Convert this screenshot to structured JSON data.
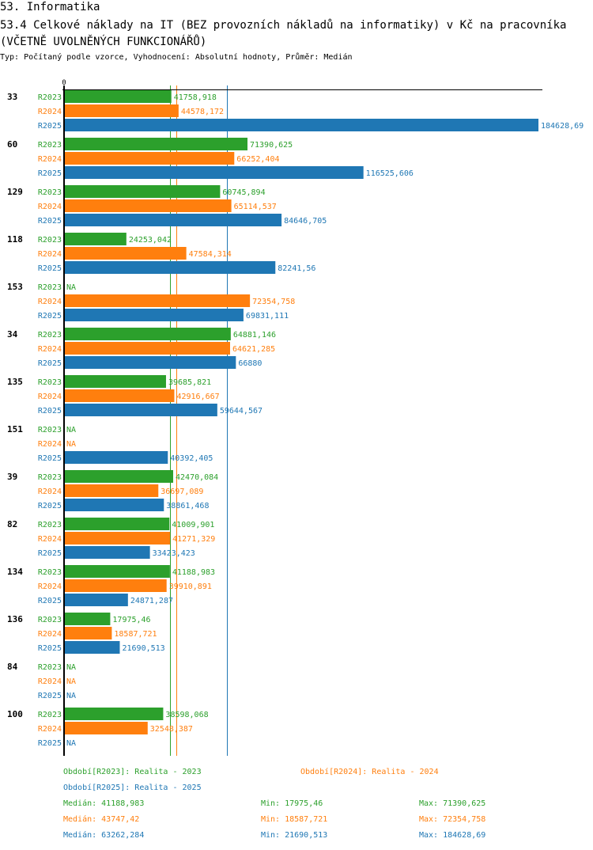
{
  "header": {
    "section": "53. Informatika",
    "title": "53.4 Celkové náklady na IT (BEZ provozních nákladů na informatiky) v Kč na pracovníka (VČETNĚ UVOLNĚNÝCH FUNKCIONÁŘŮ)",
    "subtitle": "Typ: Počítaný podle vzorce, Vyhodnocení: Absolutní hodnoty, Průměr: Medián"
  },
  "colors": {
    "R2023": "#2ca02c",
    "R2024": "#ff7f0e",
    "R2025": "#1f77b4"
  },
  "chart_data": {
    "type": "bar",
    "orientation": "horizontal",
    "title": "53.4 Celkové náklady na IT (BEZ provozních nákladů na informatiky) v Kč na pracovníka (VČETNĚ UVOLNĚNÝCH FUNKCIONÁŘŮ)",
    "axis_zero_label": "0",
    "xlim": [
      0,
      184628.69
    ],
    "categories": [
      "33",
      "60",
      "129",
      "118",
      "153",
      "34",
      "135",
      "151",
      "39",
      "82",
      "134",
      "136",
      "84",
      "100"
    ],
    "series": [
      {
        "name": "R2023",
        "color": "#2ca02c",
        "values": [
          41758.918,
          71390.625,
          60745.894,
          24253.042,
          null,
          64881.146,
          39685.821,
          null,
          42470.084,
          41009.901,
          41188.983,
          17975.46,
          null,
          38598.068
        ],
        "labels": [
          "41758,918",
          "71390,625",
          "60745,894",
          "24253,042",
          "NA",
          "64881,146",
          "39685,821",
          "NA",
          "42470,084",
          "41009,901",
          "41188,983",
          "17975,46",
          "NA",
          "38598,068"
        ]
      },
      {
        "name": "R2024",
        "color": "#ff7f0e",
        "values": [
          44578.172,
          66252.404,
          65114.537,
          47584.314,
          72354.758,
          64621.285,
          42916.667,
          null,
          36697.089,
          41271.329,
          39910.891,
          18587.721,
          null,
          32548.387
        ],
        "labels": [
          "44578,172",
          "66252,404",
          "65114,537",
          "47584,314",
          "72354,758",
          "64621,285",
          "42916,667",
          "NA",
          "36697,089",
          "41271,329",
          "39910,891",
          "18587,721",
          "NA",
          "32548,387"
        ]
      },
      {
        "name": "R2025",
        "color": "#1f77b4",
        "values": [
          184628.69,
          116525.606,
          84646.705,
          82241.56,
          69831.111,
          66880,
          59644.567,
          40392.405,
          38861.468,
          33423.423,
          24871.287,
          21690.513,
          null,
          null
        ],
        "labels": [
          "184628,69",
          "116525,606",
          "84646,705",
          "82241,56",
          "69831,111",
          "66880",
          "59644,567",
          "40392,405",
          "38861,468",
          "33423,423",
          "24871,287",
          "21690,513",
          "NA",
          "NA"
        ]
      }
    ],
    "reference_lines": [
      {
        "series": "R2023",
        "type": "median",
        "value": 41188.983
      },
      {
        "series": "R2024",
        "type": "median",
        "value": 43747.42
      },
      {
        "series": "R2025",
        "type": "median",
        "value": 63262.284
      }
    ],
    "legend": [
      {
        "series": "R2023",
        "text": "Období[R2023]: Realita - 2023"
      },
      {
        "series": "R2024",
        "text": "Období[R2024]: Realita - 2024"
      },
      {
        "series": "R2025",
        "text": "Období[R2025]: Realita - 2025"
      }
    ],
    "stats": [
      {
        "series": "R2023",
        "median": "Medián: 41188,983",
        "min": "Min: 17975,46",
        "max": "Max: 71390,625"
      },
      {
        "series": "R2024",
        "median": "Medián: 43747,42",
        "min": "Min: 18587,721",
        "max": "Max: 72354,758"
      },
      {
        "series": "R2025",
        "median": "Medián: 63262,284",
        "min": "Min: 21690,513",
        "max": "Max: 184628,69"
      }
    ],
    "legend_position": "bottom"
  }
}
